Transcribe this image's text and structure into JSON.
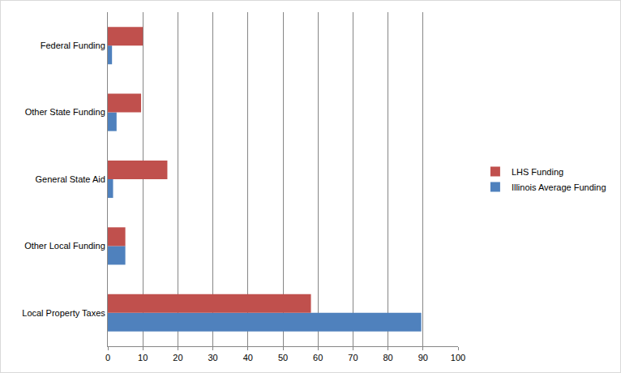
{
  "chart_data": {
    "type": "bar",
    "orientation": "horizontal",
    "categories": [
      "Local Property Taxes",
      "Other Local Funding",
      "General State Aid",
      "Other State Funding",
      "Federal Funding"
    ],
    "series": [
      {
        "name": "Illinois Average Funding",
        "color": "#4f81bd",
        "values": [
          89.5,
          5,
          1.5,
          2.5,
          1.2
        ]
      },
      {
        "name": "LHS Funding",
        "color": "#c0504d",
        "values": [
          58,
          5,
          17,
          9.5,
          10
        ]
      }
    ],
    "xlim": [
      0,
      100
    ],
    "xticks": [
      0,
      10,
      20,
      30,
      40,
      50,
      60,
      70,
      80,
      90,
      100
    ],
    "grid": true,
    "legend": "right"
  }
}
